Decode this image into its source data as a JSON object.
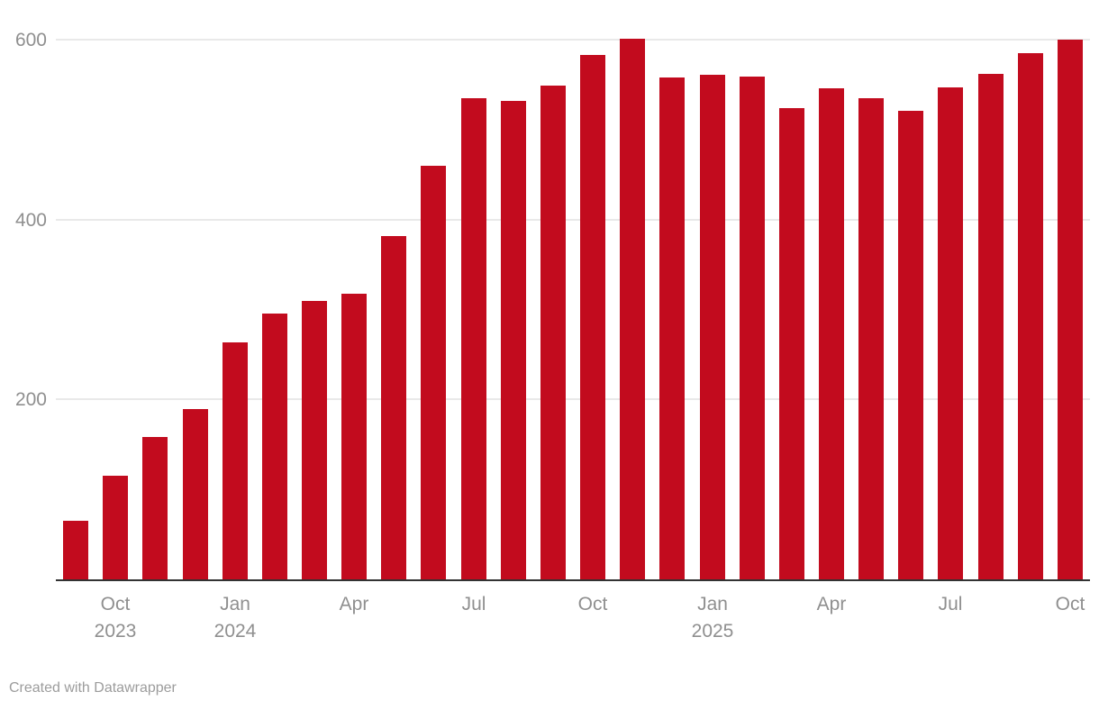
{
  "chart_data": {
    "type": "bar",
    "x": [
      "Sep 2023",
      "Oct 2023",
      "Nov 2023",
      "Dec 2023",
      "Jan 2024",
      "Feb 2024",
      "Mar 2024",
      "Apr 2024",
      "May 2024",
      "Jun 2024",
      "Jul 2024",
      "Aug 2024",
      "Sep 2024",
      "Oct 2024",
      "Nov 2024",
      "Dec 2024",
      "Jan 2025",
      "Feb 2025",
      "Mar 2025",
      "Apr 2025",
      "May 2025",
      "Jun 2025",
      "Jul 2025",
      "Aug 2025",
      "Sep 2025",
      "Oct 2025"
    ],
    "values": [
      66,
      116,
      159,
      190,
      264,
      296,
      311,
      319,
      383,
      461,
      536,
      533,
      550,
      584,
      602,
      559,
      562,
      560,
      525,
      547,
      536,
      522,
      548,
      563,
      586,
      601
    ],
    "title": "",
    "xlabel": "",
    "ylabel": "",
    "ylim": [
      0,
      620
    ],
    "grid": true,
    "legend": false,
    "y_ticks": [
      {
        "label": "200",
        "value": 200
      },
      {
        "label": "400",
        "value": 400
      },
      {
        "label": "600",
        "value": 600
      }
    ],
    "x_ticks": [
      {
        "index": 1,
        "line1": "Oct",
        "line2": "2023"
      },
      {
        "index": 4,
        "line1": "Jan",
        "line2": "2024"
      },
      {
        "index": 7,
        "line1": "Apr",
        "line2": ""
      },
      {
        "index": 10,
        "line1": "Jul",
        "line2": ""
      },
      {
        "index": 13,
        "line1": "Oct",
        "line2": ""
      },
      {
        "index": 16,
        "line1": "Jan",
        "line2": "2025"
      },
      {
        "index": 19,
        "line1": "Apr",
        "line2": ""
      },
      {
        "index": 22,
        "line1": "Jul",
        "line2": ""
      },
      {
        "index": 25,
        "line1": "Oct",
        "line2": ""
      }
    ]
  },
  "colors": {
    "bar": "#c20b1e",
    "gridline": "#e9e9e9",
    "baseline": "#333333",
    "tick_text": "#8f8f8f",
    "footer_text": "#9c9c9c"
  },
  "footer": {
    "credit_label": "Created with Datawrapper"
  }
}
